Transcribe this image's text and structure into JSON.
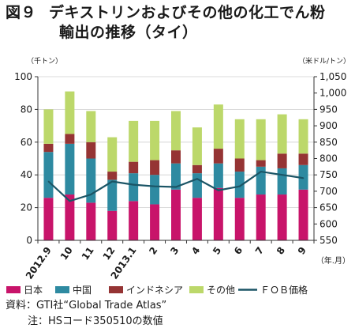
{
  "title": {
    "figure_no": "図９",
    "line1": "デキストリンおよびその他の化工でん粉",
    "line2": "輸出の推移（タイ）"
  },
  "source": {
    "line1": "資料：GTI社“Global Trade Atlas”",
    "line2": "注：HSコード350510の数値"
  },
  "chart_data": {
    "type": "bar",
    "stacked": true,
    "categories": [
      "2012.9",
      "10",
      "11",
      "12",
      "2013.1",
      "2",
      "3",
      "4",
      "5",
      "6",
      "7",
      "8",
      "9"
    ],
    "x_unit": "（年.月）",
    "y_left": {
      "label": "（千トン）",
      "range": [
        0,
        100
      ],
      "ticks": [
        "0",
        "20",
        "40",
        "60",
        "80",
        "100"
      ]
    },
    "y_right": {
      "label": "（米ドル/トン）",
      "range": [
        550,
        1050
      ],
      "ticks": [
        "550",
        "600",
        "650",
        "700",
        "750",
        "800",
        "850",
        "900",
        "950",
        "1,000",
        "1,050"
      ]
    },
    "grid": true,
    "legend_position": "bottom",
    "series": [
      {
        "name": "日本",
        "kind": "bar",
        "axis": "left",
        "color": "#c8146a",
        "values": [
          26,
          28,
          23,
          18,
          24,
          22,
          31,
          26,
          32,
          26,
          28,
          28,
          31
        ]
      },
      {
        "name": "中国",
        "kind": "bar",
        "axis": "left",
        "color": "#2e8aa1",
        "values": [
          28,
          31,
          27,
          19,
          17,
          18,
          16,
          15,
          15,
          16,
          17,
          16,
          15
        ]
      },
      {
        "name": "インドネシア",
        "kind": "bar",
        "axis": "left",
        "color": "#953434",
        "values": [
          5,
          6,
          10,
          5,
          7,
          9,
          8,
          5,
          9,
          8,
          4,
          9,
          7
        ]
      },
      {
        "name": "その他",
        "kind": "bar",
        "axis": "left",
        "color": "#bcd86a",
        "values": [
          21,
          26,
          19,
          21,
          25,
          24,
          24,
          23,
          27,
          24,
          25,
          24,
          21
        ]
      },
      {
        "name": "ＦＯＢ価格",
        "kind": "line",
        "axis": "right",
        "color": "#1b5566",
        "values": [
          730,
          670,
          690,
          730,
          720,
          715,
          713,
          738,
          703,
          715,
          760,
          750,
          740
        ]
      }
    ]
  }
}
